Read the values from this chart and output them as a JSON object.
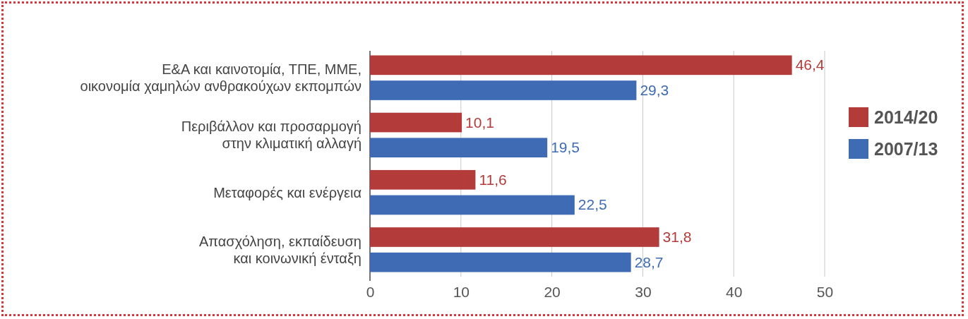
{
  "chart_data": {
    "type": "bar",
    "orientation": "horizontal",
    "categories": [
      "Ε&Α και καινοτομία, ΤΠΕ, ΜΜΕ,\nοικονομία χαμηλών ανθρακούχων εκπομπών",
      "Περιβάλλον και προσαρμογή\nστην κλιματική αλλαγή",
      "Μεταφορές και ενέργεια",
      "Απασχόληση, εκπαίδευση\nκαι κοινωνική ένταξη"
    ],
    "series": [
      {
        "name": "2014/20",
        "color": "#b33b3a",
        "values": [
          46.4,
          10.1,
          11.6,
          31.8
        ],
        "value_labels": [
          "46,4",
          "10,1",
          "11,6",
          "31,8"
        ]
      },
      {
        "name": "2007/13",
        "color": "#3e6bb4",
        "values": [
          29.3,
          19.5,
          22.5,
          28.7
        ],
        "value_labels": [
          "29,3",
          "19,5",
          "22,5",
          "28,7"
        ]
      }
    ],
    "xlim": [
      0,
      50
    ],
    "xticks": [
      0,
      10,
      20,
      30,
      40,
      50
    ],
    "grid": "x",
    "legend": "right"
  }
}
